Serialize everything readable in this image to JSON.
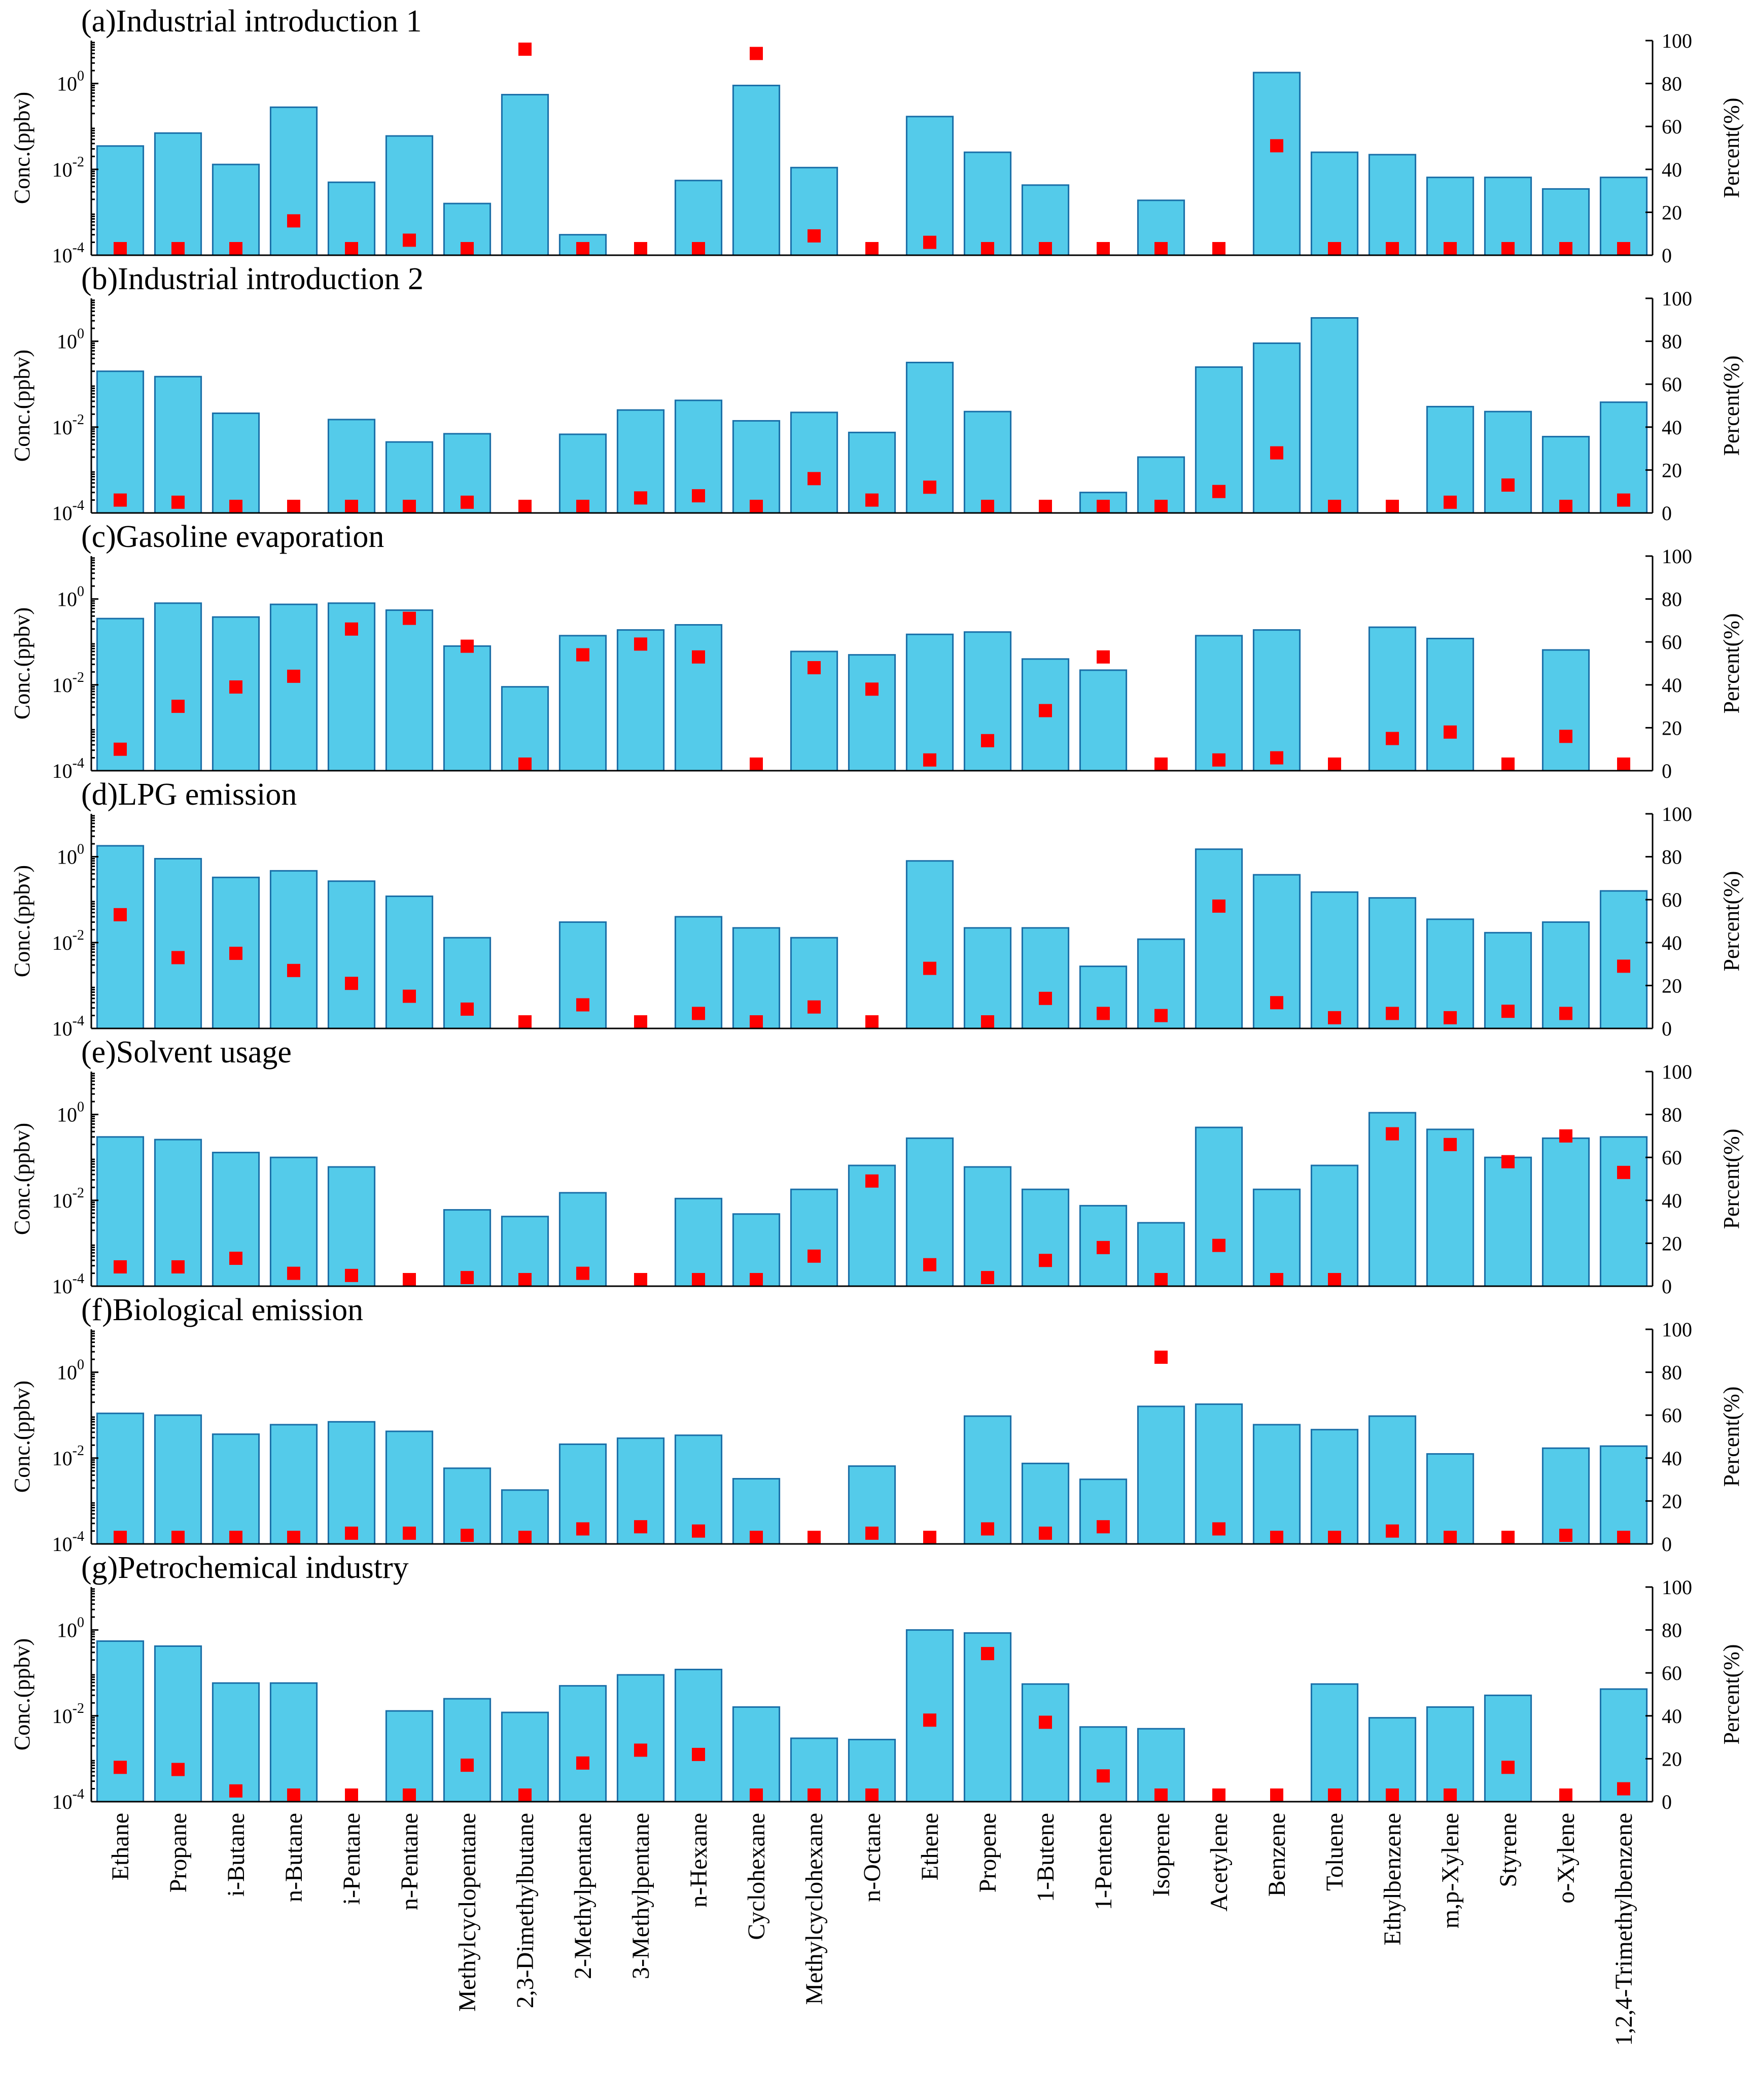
{
  "chart_data": {
    "type": "bar",
    "categories": [
      "Ethane",
      "Propane",
      "i-Butane",
      "n-Butane",
      "i-Pentane",
      "n-Pentane",
      "Methylcyclopentane",
      "2,3-Dimethylbutane",
      "2-Methylpentane",
      "3-Methylpentane",
      "n-Hexane",
      "Cyclohexane",
      "Methylcyclohexane",
      "n-Octane",
      "Ethene",
      "Propene",
      "1-Butene",
      "1-Pentene",
      "Isoprene",
      "Acetylene",
      "Benzene",
      "Toluene",
      "Ethylbenzene",
      "m,p-Xylene",
      "Styrene",
      "o-Xylene",
      "1,2,4-Trimethylbenzene"
    ],
    "left_axis": {
      "label": "Conc.(ppbv)",
      "scale": "log",
      "ylim": [
        0.0001,
        10
      ],
      "ticks": [
        {
          "base": "10",
          "exp": "-4",
          "value": 0.0001
        },
        {
          "base": "10",
          "exp": "-2",
          "value": 0.01
        },
        {
          "base": "10",
          "exp": "0",
          "value": 1
        }
      ]
    },
    "right_axis": {
      "label": "Percent(%)",
      "ylim": [
        0,
        100
      ],
      "ticks": [
        "0",
        "20",
        "40",
        "60",
        "80",
        "100"
      ]
    },
    "series_legend": {
      "bars": "Conc.(ppbv)",
      "markers": "Percent(%)"
    },
    "colors": {
      "bar_fill": "#54cbea",
      "bar_edge": "#1a6fa8",
      "marker": "#ff0000"
    },
    "panels": [
      {
        "title": "(a)Industrial introduction 1",
        "conc": [
          0.035,
          0.07,
          0.013,
          0.28,
          0.005,
          0.06,
          0.0016,
          0.55,
          0.0003,
          null,
          0.0055,
          0.9,
          0.011,
          null,
          0.17,
          0.025,
          0.0043,
          null,
          0.0019,
          null,
          1.8,
          0.025,
          0.022,
          0.0065,
          0.0065,
          0.0035,
          0.0065
        ],
        "percent": [
          1,
          2,
          1,
          16,
          0,
          7,
          1,
          96,
          0,
          1,
          1,
          94,
          9,
          1,
          6,
          1,
          3,
          1,
          1,
          1,
          51,
          0,
          1,
          1,
          3,
          1,
          1
        ]
      },
      {
        "title": "(b)Industrial introduction 2",
        "conc": [
          0.2,
          0.15,
          0.021,
          null,
          0.015,
          0.0045,
          0.007,
          null,
          0.0068,
          0.025,
          0.042,
          0.014,
          0.022,
          0.0075,
          0.32,
          0.023,
          null,
          0.0003,
          0.002,
          0.25,
          0.9,
          3.5,
          null,
          0.03,
          0.023,
          0.006,
          0.038
        ],
        "percent": [
          6,
          5,
          2,
          1,
          1,
          1,
          5,
          1,
          2,
          7,
          8,
          1,
          16,
          6,
          12,
          1,
          1,
          1,
          1,
          10,
          28,
          1,
          1,
          5,
          13,
          1,
          6
        ]
      },
      {
        "title": "(c)Gasoline evaporation",
        "conc": [
          0.35,
          0.8,
          0.38,
          0.75,
          0.8,
          0.55,
          0.08,
          0.009,
          0.14,
          0.19,
          0.25,
          null,
          0.06,
          0.05,
          0.15,
          0.17,
          0.04,
          0.022,
          null,
          0.14,
          0.19,
          null,
          0.22,
          0.12,
          null,
          0.065,
          null
        ],
        "percent": [
          10,
          30,
          39,
          44,
          66,
          71,
          58,
          1,
          54,
          59,
          53,
          1,
          48,
          38,
          5,
          14,
          28,
          53,
          1,
          5,
          6,
          1,
          15,
          18,
          1,
          16,
          1
        ]
      },
      {
        "title": "(d)LPG emission",
        "conc": [
          1.8,
          0.9,
          0.33,
          0.47,
          0.27,
          0.12,
          0.013,
          null,
          0.03,
          null,
          0.04,
          0.022,
          0.013,
          null,
          0.8,
          0.022,
          0.022,
          0.0028,
          0.012,
          1.5,
          0.38,
          0.15,
          0.11,
          0.035,
          0.017,
          0.03,
          0.16
        ],
        "percent": [
          53,
          33,
          35,
          27,
          21,
          15,
          9,
          1,
          11,
          1,
          7,
          2,
          10,
          1,
          28,
          1,
          14,
          7,
          6,
          57,
          12,
          5,
          7,
          5,
          8,
          7,
          29
        ]
      },
      {
        "title": "(e)Solvent usage",
        "conc": [
          0.3,
          0.26,
          0.13,
          0.1,
          0.06,
          null,
          0.006,
          0.0042,
          0.015,
          null,
          0.011,
          0.0048,
          0.018,
          0.065,
          0.28,
          0.06,
          0.018,
          0.0075,
          0.003,
          0.5,
          0.018,
          0.065,
          1.1,
          0.45,
          0.1,
          0.28,
          0.3
        ],
        "percent": [
          9,
          9,
          13,
          6,
          5,
          1,
          4,
          0,
          6,
          1,
          2,
          0,
          14,
          49,
          10,
          4,
          12,
          18,
          1,
          19,
          0,
          2,
          71,
          66,
          58,
          70,
          53
        ]
      },
      {
        "title": "(f)Biological emission",
        "conc": [
          0.11,
          0.1,
          0.036,
          0.06,
          0.07,
          0.042,
          0.0058,
          0.0018,
          0.021,
          0.029,
          0.034,
          0.0033,
          null,
          0.0065,
          null,
          0.095,
          0.0075,
          0.0032,
          0.16,
          0.18,
          0.06,
          0.046,
          0.095,
          0.0125,
          null,
          0.017,
          0.019
        ],
        "percent": [
          3,
          3,
          3,
          3,
          5,
          5,
          4,
          1,
          7,
          8,
          6,
          1,
          1,
          5,
          1,
          7,
          5,
          8,
          87,
          7,
          2,
          1,
          6,
          2,
          1,
          4,
          3
        ]
      },
      {
        "title": "(g)Petrochemical industry",
        "conc": [
          0.55,
          0.42,
          0.058,
          0.058,
          null,
          0.013,
          0.025,
          0.012,
          0.05,
          0.09,
          0.12,
          0.016,
          0.003,
          0.0028,
          1.0,
          0.85,
          0.055,
          0.0055,
          0.005,
          null,
          null,
          0.055,
          0.009,
          0.016,
          0.03,
          null,
          0.042
        ],
        "percent": [
          16,
          15,
          5,
          3,
          0,
          1,
          17,
          2,
          18,
          24,
          22,
          1,
          2,
          2,
          38,
          69,
          37,
          12,
          2,
          0,
          0,
          1,
          0,
          2,
          16,
          0,
          6
        ]
      }
    ]
  }
}
